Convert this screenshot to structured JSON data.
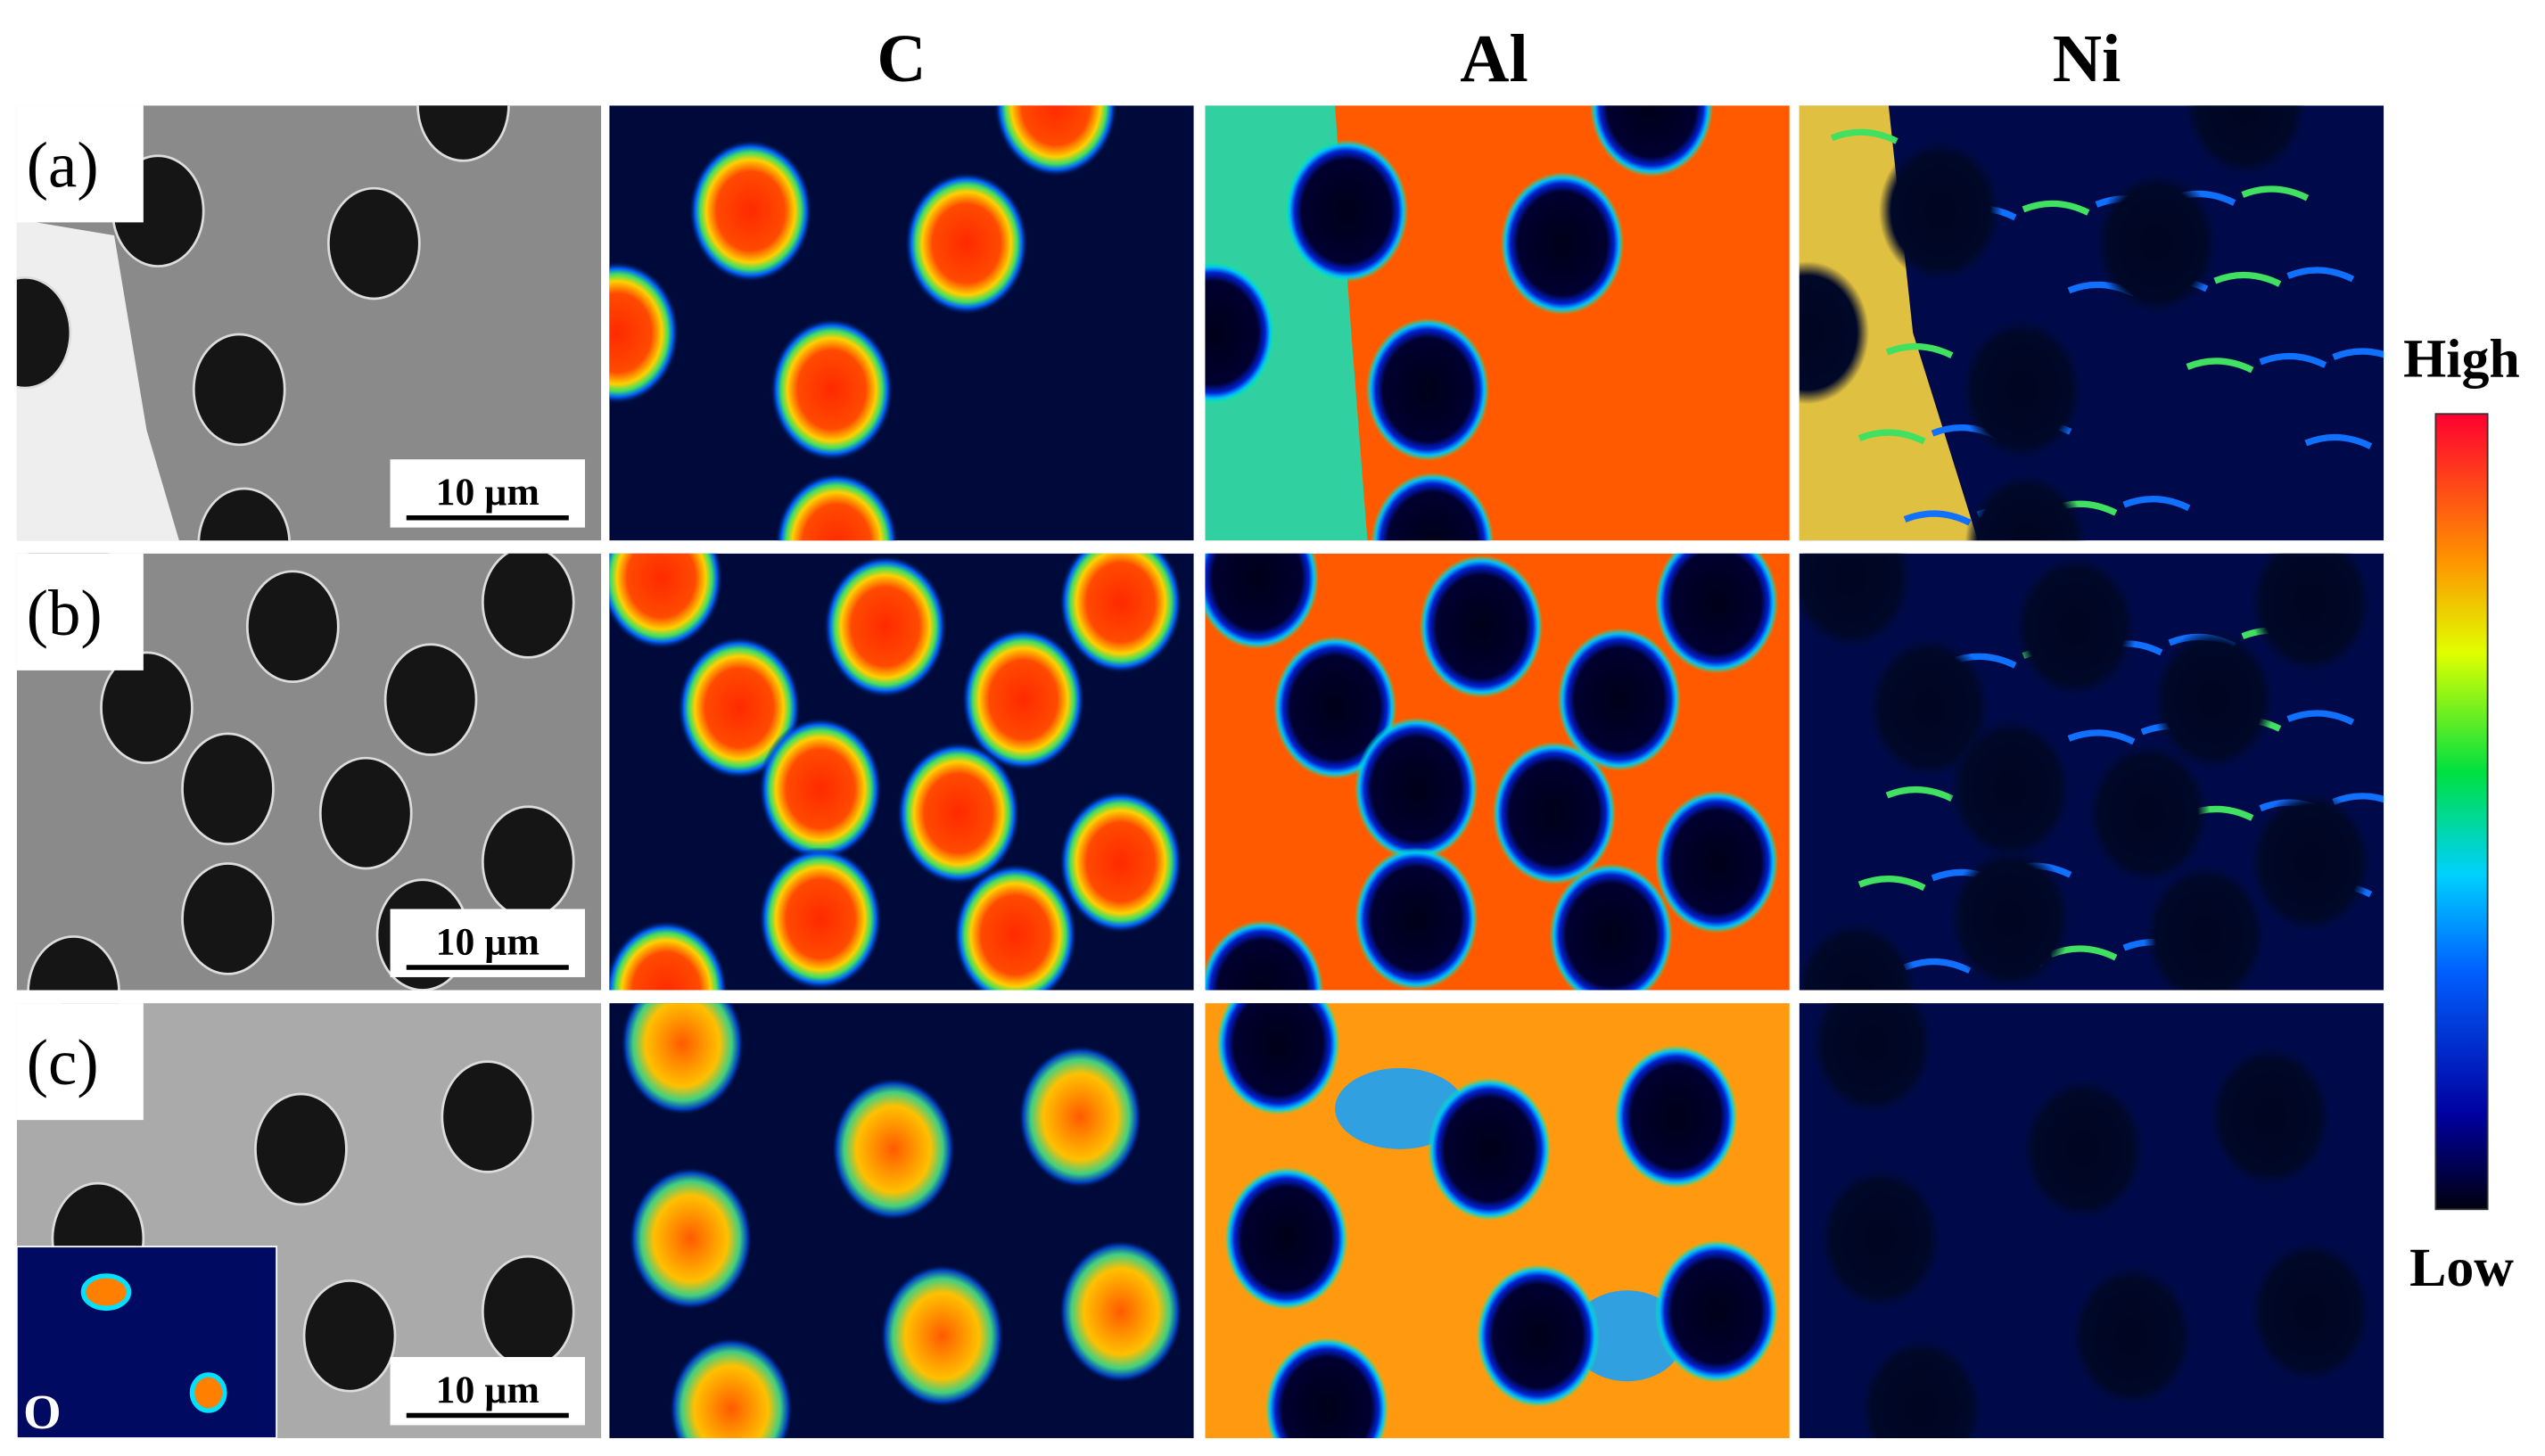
{
  "figure": {
    "columns": [
      "C",
      "Al",
      "Ni"
    ],
    "rows": [
      {
        "label": "(a)",
        "scale_bar": "10 µm"
      },
      {
        "label": "(b)",
        "scale_bar": "10 µm"
      },
      {
        "label": "(c)",
        "scale_bar": "10 µm",
        "inset_label": "O"
      }
    ],
    "colorbar": {
      "high": "High",
      "low": "Low"
    }
  }
}
